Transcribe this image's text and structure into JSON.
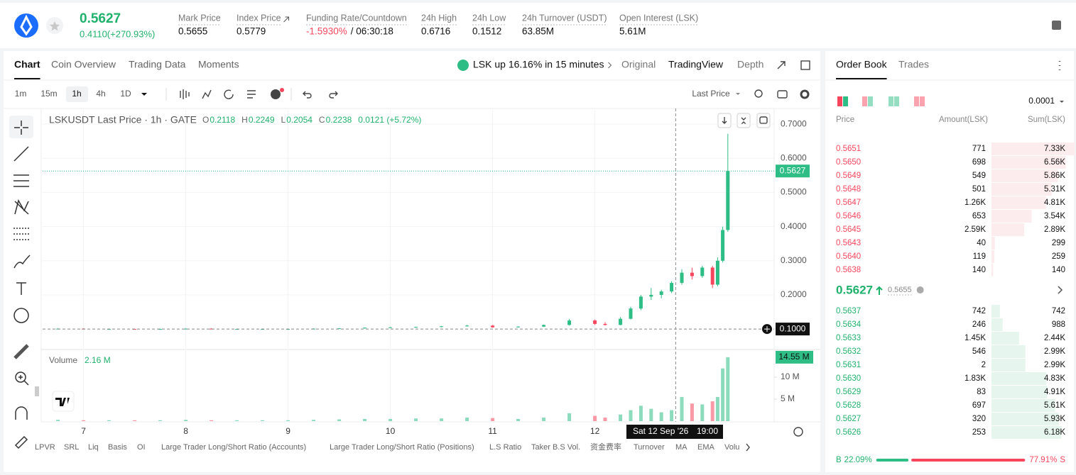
{
  "header": {
    "price": "0.5627",
    "change": "0.4110(+270.93%)",
    "stats": [
      {
        "label": "Mark Price",
        "value": "0.5655"
      },
      {
        "label": "Index Price",
        "value": "0.5779"
      },
      {
        "label": "Funding Rate/Countdown",
        "value": "-1.5930%",
        "extra": "/ 06:30:18"
      },
      {
        "label": "24h High",
        "value": "0.6716"
      },
      {
        "label": "24h Low",
        "value": "0.1512"
      },
      {
        "label": "24h Turnover (USDT)",
        "value": "63.85M"
      },
      {
        "label": "Open Interest (LSK)",
        "value": "5.61M"
      }
    ]
  },
  "tabs": [
    "Chart",
    "Coin Overview",
    "Trading Data",
    "Moments"
  ],
  "news": "LSK up 16.16% in 15 minutes",
  "views": [
    "Original",
    "TradingView",
    "Depth"
  ],
  "intervals": [
    "1m",
    "15m",
    "1h",
    "4h",
    "1D"
  ],
  "price_type": "Last Price",
  "legend": {
    "title": "LSKUSDT Last Price · 1h · GATE",
    "ohlc": [
      {
        "key": "O",
        "value": "0.2118"
      },
      {
        "key": "H",
        "value": "0.2249"
      },
      {
        "key": "L",
        "value": "0.2054"
      },
      {
        "key": "C",
        "value": "0.2238"
      }
    ],
    "change": "0.0121 (+5.72%)"
  },
  "volume_legend": {
    "label": "Volume",
    "value": "2.16 M"
  },
  "indicators": [
    "LPVR",
    "SRL",
    "Liq",
    "Basis",
    "OI",
    "Large Trader Long/Short Ratio (Accounts)",
    "Large Trader Long/Short Ratio (Positions)",
    "L.S Ratio",
    "Taker B.S Vol.",
    "资金费率",
    "Turnover",
    "MA",
    "EMA",
    "Volu"
  ],
  "order_book": {
    "tabs": [
      "Order Book",
      "Trades"
    ],
    "tick_size": "0.0001",
    "headers": [
      "Price",
      "Amount(LSK)",
      "Sum(LSK)"
    ],
    "asks": [
      {
        "price": "0.5651",
        "amount": "771",
        "sum": {
          "value": 7330,
          "label": "7.33K"
        }
      },
      {
        "price": "0.5650",
        "amount": "698",
        "sum": {
          "value": 6560,
          "label": "6.56K"
        }
      },
      {
        "price": "0.5649",
        "amount": "549",
        "sum": {
          "value": 5860,
          "label": "5.86K"
        }
      },
      {
        "price": "0.5648",
        "amount": "501",
        "sum": {
          "value": 5310,
          "label": "5.31K"
        }
      },
      {
        "price": "0.5647",
        "amount": "1.26K",
        "sum": {
          "value": 4810,
          "label": "4.81K"
        }
      },
      {
        "price": "0.5646",
        "amount": "653",
        "sum": {
          "value": 3540,
          "label": "3.54K"
        }
      },
      {
        "price": "0.5645",
        "amount": "2.59K",
        "sum": {
          "value": 2890,
          "label": "2.89K"
        }
      },
      {
        "price": "0.5643",
        "amount": "40",
        "sum": 299
      },
      {
        "price": "0.5640",
        "amount": "119",
        "sum": 259
      },
      {
        "price": "0.5638",
        "amount": "140",
        "sum": 140
      }
    ],
    "mid_price": "0.5627",
    "mark_price": "0.5655",
    "bids": [
      {
        "price": "0.5637",
        "amount": "742",
        "sum": 742
      },
      {
        "price": "0.5634",
        "amount": "246",
        "sum": 988
      },
      {
        "price": "0.5633",
        "amount": "1.45K",
        "sum": {
          "value": 2440,
          "label": "2.44K"
        }
      },
      {
        "price": "0.5632",
        "amount": "546",
        "sum": {
          "value": 2990,
          "label": "2.99K"
        }
      },
      {
        "price": "0.5631",
        "amount": "2",
        "sum": {
          "value": 2990,
          "label": "2.99K"
        }
      },
      {
        "price": "0.5630",
        "amount": "1.83K",
        "sum": {
          "value": 4830,
          "label": "4.83K"
        }
      },
      {
        "price": "0.5629",
        "amount": "83",
        "sum": {
          "value": 4910,
          "label": "4.91K"
        }
      },
      {
        "price": "0.5628",
        "amount": "697",
        "sum": {
          "value": 5610,
          "label": "5.61K"
        }
      },
      {
        "price": "0.5627",
        "amount": "320",
        "sum": {
          "value": 5930,
          "label": "5.93K"
        }
      },
      {
        "price": "0.5626",
        "amount": "253",
        "sum": {
          "value": 6180,
          "label": "6.18K"
        }
      }
    ],
    "buy": {
      "letter": "B",
      "percent": {
        "value": 22.09,
        "label": "22.09%"
      }
    },
    "sell": {
      "letter": "S",
      "percent": {
        "value": 77.91,
        "label": "77.91%"
      }
    }
  },
  "chart_data": {
    "type": "candlestick",
    "x": [
      6.75,
      7,
      7.25,
      7.5,
      7.75,
      8,
      8.25,
      8.5,
      8.75,
      9,
      9.25,
      9.5,
      9.75,
      10,
      10.25,
      10.5,
      10.75,
      11,
      11.25,
      11.5,
      11.75,
      12,
      12.1,
      12.25,
      12.35,
      12.45,
      12.55,
      12.65,
      12.75,
      12.85,
      12.95,
      13.05,
      13.15,
      13.2,
      13.25,
      13.3
    ],
    "open": [
      0.1,
      0.101,
      0.1,
      0.1,
      0.099,
      0.1,
      0.101,
      0.1,
      0.1,
      0.1,
      0.1,
      0.101,
      0.102,
      0.104,
      0.105,
      0.106,
      0.108,
      0.11,
      0.105,
      0.107,
      0.112,
      0.125,
      0.115,
      0.112,
      0.13,
      0.16,
      0.195,
      0.2,
      0.21,
      0.235,
      0.265,
      0.255,
      0.28,
      0.23,
      0.3,
      0.39
    ],
    "high": [
      0.102,
      0.102,
      0.101,
      0.101,
      0.101,
      0.102,
      0.102,
      0.101,
      0.101,
      0.101,
      0.102,
      0.103,
      0.104,
      0.106,
      0.107,
      0.109,
      0.112,
      0.112,
      0.108,
      0.113,
      0.13,
      0.128,
      0.12,
      0.135,
      0.165,
      0.2,
      0.22,
      0.215,
      0.24,
      0.275,
      0.28,
      0.285,
      0.285,
      0.31,
      0.4,
      0.6716
    ],
    "low": [
      0.099,
      0.1,
      0.099,
      0.099,
      0.098,
      0.099,
      0.099,
      0.099,
      0.099,
      0.099,
      0.099,
      0.1,
      0.101,
      0.103,
      0.104,
      0.105,
      0.107,
      0.104,
      0.104,
      0.106,
      0.11,
      0.112,
      0.11,
      0.111,
      0.128,
      0.155,
      0.185,
      0.19,
      0.205,
      0.23,
      0.245,
      0.25,
      0.22,
      0.225,
      0.295,
      0.385
    ],
    "close": [
      0.101,
      0.1,
      0.1,
      0.099,
      0.1,
      0.101,
      0.1,
      0.1,
      0.1,
      0.1,
      0.101,
      0.102,
      0.104,
      0.105,
      0.106,
      0.108,
      0.11,
      0.105,
      0.107,
      0.112,
      0.125,
      0.115,
      0.112,
      0.13,
      0.16,
      0.195,
      0.2,
      0.21,
      0.235,
      0.265,
      0.255,
      0.28,
      0.23,
      0.3,
      0.39,
      0.5627
    ],
    "volume": [
      0.3,
      0.2,
      0.2,
      0.2,
      0.2,
      0.3,
      0.2,
      0.2,
      0.2,
      0.2,
      0.3,
      0.4,
      0.5,
      0.5,
      0.6,
      0.6,
      0.8,
      0.7,
      0.5,
      0.8,
      1.8,
      1.2,
      0.8,
      1.5,
      2.5,
      3.5,
      2.8,
      2.0,
      2.5,
      5.5,
      4.0,
      3.8,
      4.5,
      5.5,
      12,
      14.55
    ],
    "xlim": [
      6.6,
      13.75
    ],
    "xticks": [
      7,
      8,
      9,
      10,
      11,
      12
    ],
    "ylim": [
      0.04,
      0.75
    ],
    "yticks": [
      {
        "value": 0.2,
        "label": "0.2000"
      },
      {
        "value": 0.3,
        "label": "0.3000"
      },
      {
        "value": 0.4,
        "label": "0.4000"
      },
      {
        "value": 0.5,
        "label": "0.5000"
      },
      {
        "value": 0.6,
        "label": "0.6000"
      },
      {
        "value": 0.7,
        "label": "0.7000"
      }
    ],
    "volume_ylim": [
      0,
      16.3
    ],
    "volume_yticks": [
      {
        "value": 5,
        "label": "5 M"
      },
      {
        "value": 10,
        "label": "10 M"
      }
    ],
    "volume_last_label": {
      "value": 14.55,
      "label": "14.55 M"
    },
    "up_color": "#2ebd85",
    "down_color": "#f6465d",
    "grid": true,
    "crosshair": {
      "x": 12.79,
      "price": {
        "value": 0.1,
        "label": "0.1000"
      },
      "date": "Sat 12 Sep '26",
      "time": "19:00"
    }
  }
}
